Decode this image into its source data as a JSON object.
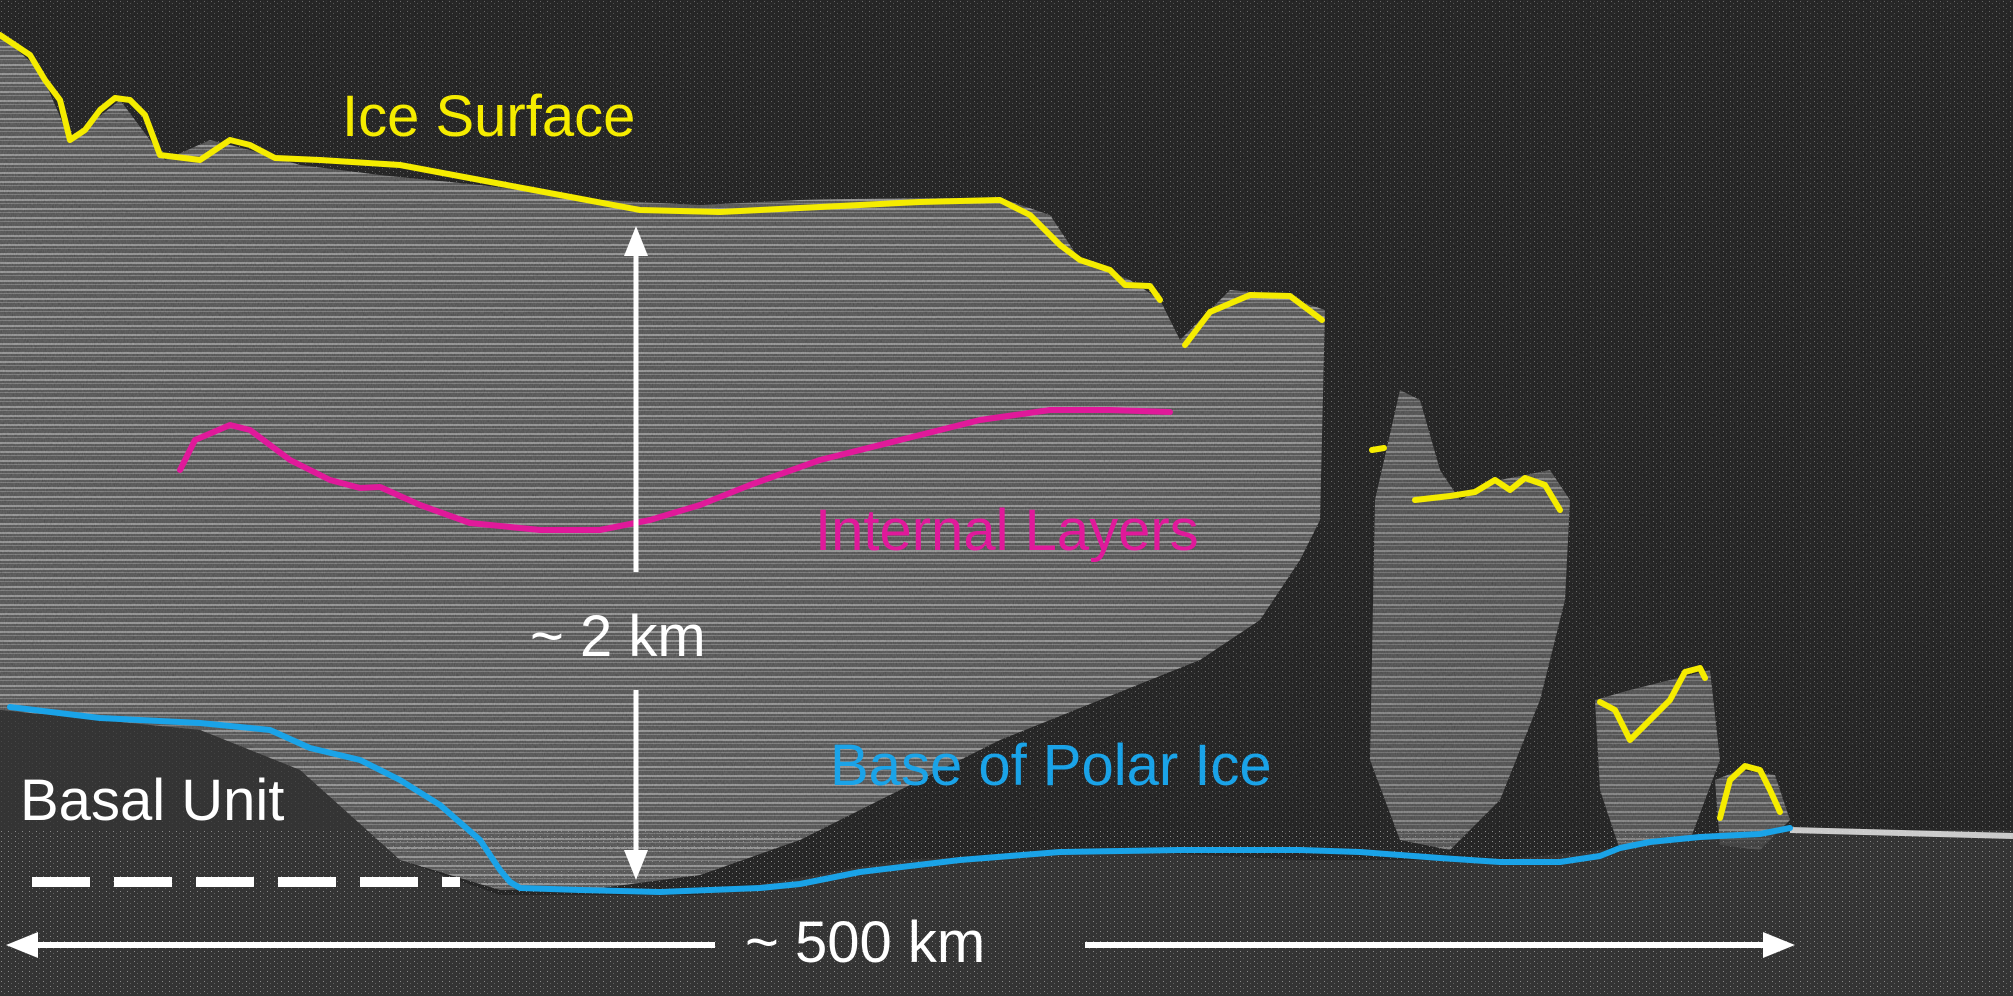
{
  "labels": {
    "ice_surface": "Ice Surface",
    "internal_layers": "Internal Layers",
    "base_of_polar_ice": "Base of Polar Ice",
    "basal_unit": "Basal Unit",
    "thickness": "~ 2 km",
    "width": "~ 500 km"
  },
  "colors": {
    "ice_surface": "#f5ec00",
    "internal_layers": "#e0199a",
    "base_of_polar_ice": "#1aa3e8",
    "annotation": "#ffffff",
    "background": "#050505"
  }
}
